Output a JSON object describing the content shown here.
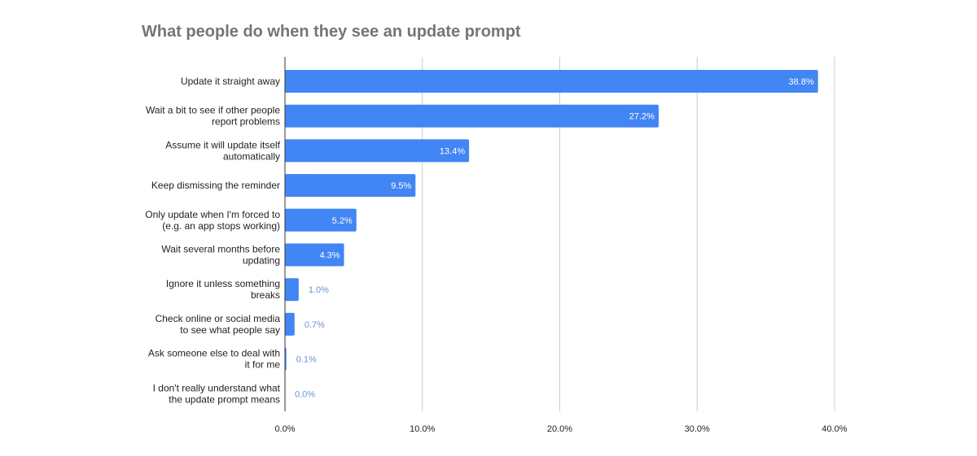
{
  "chart_data": {
    "type": "bar",
    "orientation": "horizontal",
    "title": "What people do when they see an update prompt",
    "categories": [
      [
        "Update it straight away"
      ],
      [
        "Wait a bit to see if other people",
        "report problems"
      ],
      [
        "Assume it will update itself",
        "automatically"
      ],
      [
        "Keep dismissing the reminder"
      ],
      [
        "Only update when I'm forced to",
        "(e.g. an app stops working)"
      ],
      [
        "Wait several months before",
        "updating"
      ],
      [
        "Ignore it unless something",
        "breaks"
      ],
      [
        "Check online or social media",
        "to see what people say"
      ],
      [
        "Ask someone else to deal with",
        "it for me"
      ],
      [
        "I don't really understand what",
        "the update prompt means"
      ]
    ],
    "values": [
      38.8,
      27.2,
      13.4,
      9.5,
      5.2,
      4.3,
      1.0,
      0.7,
      0.1,
      0.0
    ],
    "data_labels": [
      "38.8%",
      "27.2%",
      "13.4%",
      "9.5%",
      "5.2%",
      "4.3%",
      "1.0%",
      "0.7%",
      "0.1%",
      "0.0%"
    ],
    "xlim": [
      0,
      40
    ],
    "x_ticks": [
      "0.0%",
      "10.0%",
      "20.0%",
      "30.0%",
      "40.0%"
    ],
    "x_tick_values": [
      0,
      10,
      20,
      30,
      40
    ],
    "grid": true,
    "legend": "none",
    "colors": {
      "bar": "#4285f4",
      "label_inside": "#ffffff",
      "label_outside": "#6a93d3",
      "title": "#757575",
      "grid": "#cccccc"
    }
  }
}
